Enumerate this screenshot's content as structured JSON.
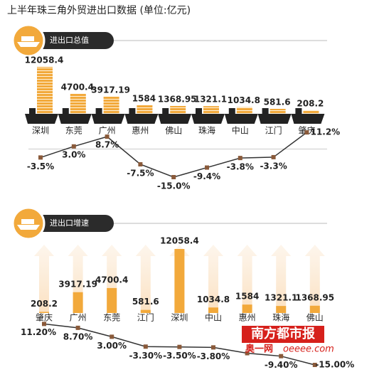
{
  "title": "上半年珠三角外贸进出口数据 (单位:亿元)",
  "watermark": {
    "brand": "南方都市报",
    "site": "奥一网",
    "url": "oeeee.com"
  },
  "chart_data": [
    {
      "type": "ship-bar",
      "subtitle": "进出口总值",
      "categories": [
        "深圳",
        "东莞",
        "广州",
        "惠州",
        "佛山",
        "珠海",
        "中山",
        "江门",
        "肇庆"
      ],
      "series": [
        {
          "color": "#f2a93b",
          "values": [
            12058.4,
            4700.4,
            3917.19,
            1584,
            1368.95,
            1321.1,
            1034.8,
            581.6,
            208.2
          ]
        },
        {
          "color": "#333333",
          "marker_color": "#8a5a3a",
          "values": [
            -3.5,
            3.0,
            8.7,
            -7.5,
            -15.0,
            -9.4,
            -3.8,
            -3.3,
            11.2
          ],
          "value_labels": [
            "-3.5%",
            "3.0%",
            "8.7%",
            "-7.5%",
            "-15.0%",
            "-9.4%",
            "-3.8%",
            "-3.3%",
            "11.2%"
          ]
        }
      ]
    },
    {
      "type": "arrow-bar",
      "subtitle": "进出口增速",
      "categories": [
        "肇庆",
        "广州",
        "东莞",
        "江门",
        "深圳",
        "中山",
        "惠州",
        "珠海",
        "佛山"
      ],
      "series": [
        {
          "color": "#f2a93b",
          "values": [
            208.2,
            3917.19,
            4700.4,
            581.6,
            12058.4,
            1034.8,
            1584,
            1321.1,
            1368.95
          ]
        },
        {
          "color": "#333333",
          "marker_color": "#8a5a3a",
          "values": [
            11.2,
            8.7,
            3.0,
            -3.3,
            -3.5,
            -3.8,
            -7.5,
            -9.4,
            -15.0
          ],
          "value_labels": [
            "11.20%",
            "8.70%",
            "3.00%",
            "-3.30%",
            "-3.50%",
            "-3.80%",
            null,
            "-9.40%",
            "-15.00%"
          ]
        }
      ]
    }
  ]
}
